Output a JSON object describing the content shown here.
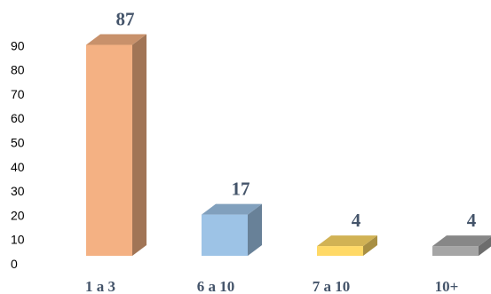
{
  "chart_data": {
    "type": "bar",
    "style": "3d-column",
    "categories": [
      "1 a 3",
      "6 a 10",
      "7 a 10",
      "10+"
    ],
    "values": [
      87,
      17,
      4,
      4
    ],
    "data_labels": [
      "87",
      "17",
      "4",
      "4"
    ],
    "colors": [
      "#f4b183",
      "#9dc3e6",
      "#ffd966",
      "#a5a5a5"
    ],
    "ylim": [
      0,
      90
    ],
    "yticks": [
      0,
      10,
      20,
      30,
      40,
      50,
      60,
      70,
      80,
      90
    ],
    "grid": false,
    "legend": "none"
  }
}
